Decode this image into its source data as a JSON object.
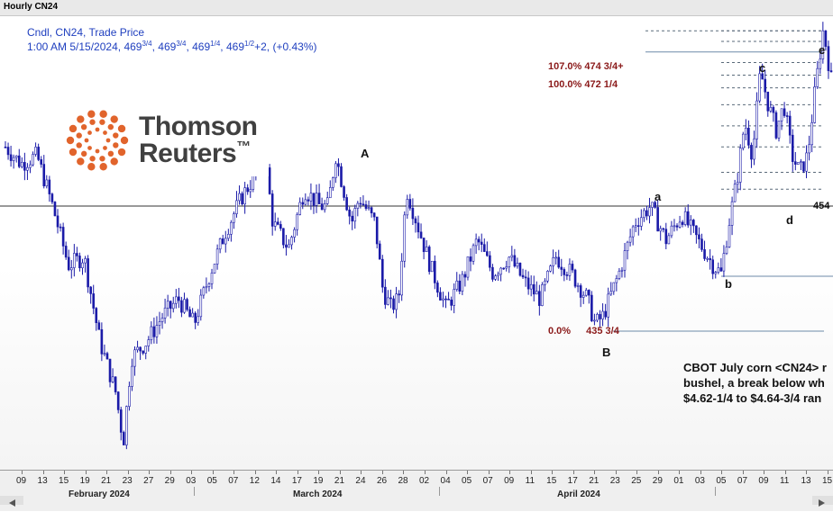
{
  "window": {
    "title": "Hourly CN24"
  },
  "info": {
    "line1": "Cndl, CN24, Trade Price",
    "time": "1:00 AM 5/15/2024,",
    "open": {
      "w": "469",
      "f": "3/4"
    },
    "high": {
      "w": "469",
      "f": "3/4"
    },
    "low": {
      "w": "469",
      "f": "1/4"
    },
    "close": {
      "w": "469",
      "f": "1/2"
    },
    "change": "+2, (+0.43%)"
  },
  "logo": {
    "line1": "Thomson",
    "line2": "Reuters",
    "tm": "™"
  },
  "chart_data": {
    "type": "candlestick",
    "title": "Hourly CN24",
    "instrument": "CN24",
    "ylabel": "",
    "ylim": [
      425,
      478
    ],
    "x_day_labels": [
      "09",
      "13",
      "15",
      "19",
      "21",
      "23",
      "27",
      "29",
      "03",
      "05",
      "07",
      "12",
      "14",
      "17",
      "19",
      "21",
      "24",
      "26",
      "28",
      "02",
      "04",
      "05",
      "07",
      "09",
      "11",
      "15",
      "17",
      "21",
      "23",
      "25",
      "29",
      "01",
      "03",
      "05",
      "07",
      "09",
      "11",
      "13",
      "15"
    ],
    "x_month_labels": [
      "February 2024",
      "March 2024",
      "April 2024"
    ],
    "price_path": [
      {
        "t": 0,
        "p": 461
      },
      {
        "t": 2,
        "p": 459
      },
      {
        "t": 4,
        "p": 460
      },
      {
        "t": 6,
        "p": 454
      },
      {
        "t": 8,
        "p": 447
      },
      {
        "t": 10,
        "p": 448
      },
      {
        "t": 12,
        "p": 438
      },
      {
        "t": 14,
        "p": 432
      },
      {
        "t": 15,
        "p": 426
      },
      {
        "t": 16,
        "p": 436
      },
      {
        "t": 18,
        "p": 438
      },
      {
        "t": 20,
        "p": 441
      },
      {
        "t": 22,
        "p": 443
      },
      {
        "t": 24,
        "p": 440
      },
      {
        "t": 26,
        "p": 446
      },
      {
        "t": 28,
        "p": 451
      },
      {
        "t": 30,
        "p": 455
      },
      {
        "t": 32,
        "p": 458
      },
      {
        "t": 33,
        "p": 460
      },
      {
        "t": 34,
        "p": 452
      },
      {
        "t": 36,
        "p": 449
      },
      {
        "t": 38,
        "p": 456
      },
      {
        "t": 40,
        "p": 454
      },
      {
        "t": 41,
        "p": 454
      },
      {
        "t": 42,
        "p": 460
      },
      {
        "t": 43,
        "p": 456
      },
      {
        "t": 44,
        "p": 452
      },
      {
        "t": 45,
        "p": 455
      },
      {
        "t": 47,
        "p": 452
      },
      {
        "t": 48,
        "p": 444
      },
      {
        "t": 49,
        "p": 442
      },
      {
        "t": 50,
        "p": 443
      },
      {
        "t": 51,
        "p": 456
      },
      {
        "t": 52,
        "p": 453
      },
      {
        "t": 54,
        "p": 447
      },
      {
        "t": 56,
        "p": 442
      },
      {
        "t": 58,
        "p": 445
      },
      {
        "t": 60,
        "p": 450
      },
      {
        "t": 62,
        "p": 446
      },
      {
        "t": 64,
        "p": 448
      },
      {
        "t": 66,
        "p": 445
      },
      {
        "t": 68,
        "p": 443
      },
      {
        "t": 70,
        "p": 448
      },
      {
        "t": 72,
        "p": 446
      },
      {
        "t": 74,
        "p": 443
      },
      {
        "t": 75,
        "p": 440
      },
      {
        "t": 76,
        "p": 441
      },
      {
        "t": 78,
        "p": 446
      },
      {
        "t": 80,
        "p": 452
      },
      {
        "t": 82,
        "p": 454
      },
      {
        "t": 84,
        "p": 450
      },
      {
        "t": 86,
        "p": 453
      },
      {
        "t": 88,
        "p": 450
      },
      {
        "t": 90,
        "p": 447
      },
      {
        "t": 91,
        "p": 446
      },
      {
        "t": 92,
        "p": 452
      },
      {
        "t": 93,
        "p": 457
      },
      {
        "t": 94,
        "p": 464
      },
      {
        "t": 95,
        "p": 460
      },
      {
        "t": 96,
        "p": 470
      },
      {
        "t": 97,
        "p": 466
      },
      {
        "t": 98,
        "p": 463
      },
      {
        "t": 99,
        "p": 466
      },
      {
        "t": 100,
        "p": 460
      },
      {
        "t": 101,
        "p": 458
      },
      {
        "t": 102,
        "p": 460
      },
      {
        "t": 103,
        "p": 468
      },
      {
        "t": 104,
        "p": 475
      },
      {
        "t": 105,
        "p": 469
      }
    ],
    "t_range": [
      0,
      105
    ],
    "annotations": {
      "waves": [
        "A",
        "B",
        "a",
        "b",
        "c",
        "d",
        "e"
      ],
      "fib_levels": [
        {
          "label": "107.0%",
          "price": "474 3/4+",
          "value": 474.75
        },
        {
          "label": "100.0%",
          "price": "472 1/4",
          "value": 472.25
        },
        {
          "label": "0.0%",
          "price": "435 3/4",
          "value": 435.75
        }
      ],
      "horizontal_level": {
        "label": "454",
        "value": 454
      }
    },
    "note": {
      "line1": "CBOT July corn <CN24> r",
      "line2": "bushel, a break below wh",
      "line3": "$4.62-1/4 to $4.64-3/4 ran"
    }
  }
}
